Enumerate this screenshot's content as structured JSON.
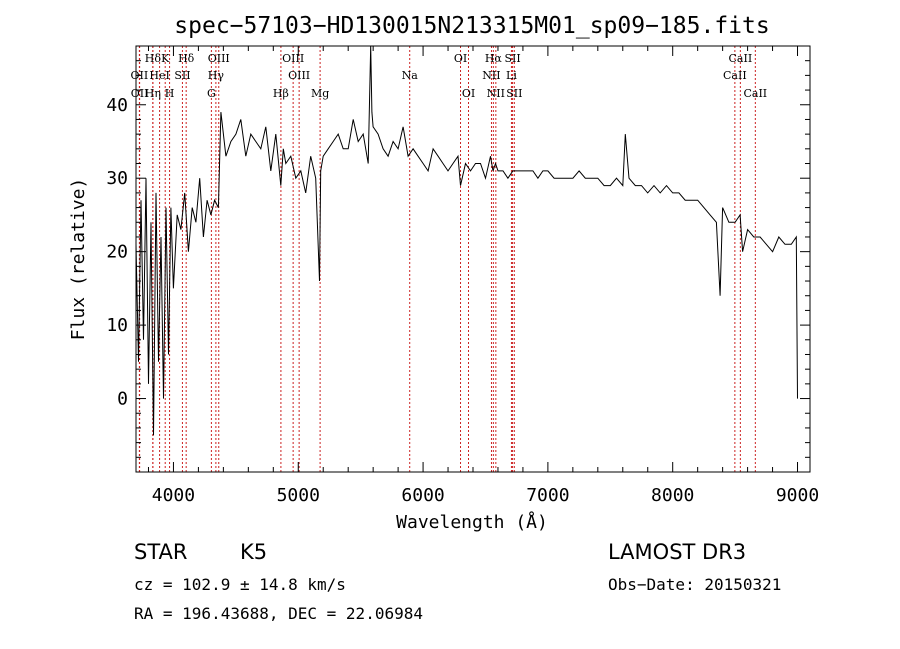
{
  "chart_data": {
    "type": "line",
    "title": "spec−57103−HD130015N213315M01_sp09−185.fits",
    "xlabel": "Wavelength (Å)",
    "ylabel": "Flux (relative)",
    "xlim": [
      3700,
      9100
    ],
    "ylim": [
      -10,
      48
    ],
    "xticks": [
      4000,
      5000,
      6000,
      7000,
      8000,
      9000
    ],
    "yticks": [
      0,
      10,
      20,
      30,
      40
    ],
    "series": [
      {
        "name": "spectrum",
        "x": [
          3700,
          3720,
          3740,
          3760,
          3780,
          3800,
          3820,
          3840,
          3860,
          3880,
          3900,
          3920,
          3940,
          3960,
          3980,
          4000,
          4030,
          4060,
          4090,
          4120,
          4150,
          4180,
          4210,
          4240,
          4270,
          4300,
          4330,
          4360,
          4380,
          4420,
          4460,
          4500,
          4540,
          4580,
          4620,
          4660,
          4700,
          4740,
          4780,
          4820,
          4860,
          4880,
          4900,
          4940,
          4980,
          5020,
          5060,
          5100,
          5140,
          5170,
          5180,
          5200,
          5240,
          5280,
          5320,
          5360,
          5400,
          5440,
          5480,
          5520,
          5560,
          5580,
          5590,
          5600,
          5640,
          5680,
          5720,
          5760,
          5800,
          5840,
          5880,
          5920,
          5960,
          6000,
          6040,
          6080,
          6120,
          6160,
          6200,
          6240,
          6280,
          6300,
          6340,
          6380,
          6420,
          6460,
          6500,
          6540,
          6560,
          6580,
          6600,
          6640,
          6680,
          6720,
          6760,
          6800,
          6840,
          6880,
          6920,
          6960,
          7000,
          7050,
          7100,
          7150,
          7200,
          7250,
          7300,
          7350,
          7400,
          7450,
          7500,
          7550,
          7600,
          7620,
          7650,
          7700,
          7750,
          7800,
          7850,
          7900,
          7950,
          8000,
          8050,
          8100,
          8150,
          8200,
          8250,
          8300,
          8350,
          8380,
          8400,
          8450,
          8500,
          8540,
          8560,
          8600,
          8650,
          8700,
          8750,
          8800,
          8850,
          8900,
          8950,
          8990,
          9000
        ],
        "y": [
          21,
          5,
          27,
          8,
          30,
          2,
          24,
          -5,
          28,
          5,
          22,
          0,
          26,
          6,
          26,
          15,
          25,
          23,
          28,
          20,
          26,
          24,
          30,
          22,
          27,
          25,
          27,
          26,
          39,
          33,
          35,
          36,
          38,
          33,
          36,
          35,
          34,
          37,
          31,
          36,
          29,
          34,
          32,
          33,
          30,
          31,
          28,
          33,
          30,
          16,
          31,
          33,
          34,
          35,
          36,
          34,
          34,
          38,
          35,
          36,
          32,
          50,
          39,
          37,
          36,
          34,
          33,
          35,
          34,
          37,
          33,
          34,
          33,
          32,
          31,
          34,
          33,
          32,
          31,
          32,
          33,
          29,
          32,
          31,
          32,
          32,
          30,
          33,
          31,
          32,
          31,
          31,
          30,
          31,
          31,
          31,
          31,
          31,
          30,
          31,
          31,
          30,
          30,
          30,
          30,
          31,
          30,
          30,
          30,
          29,
          29,
          30,
          29,
          36,
          30,
          29,
          29,
          28,
          29,
          28,
          29,
          28,
          28,
          27,
          27,
          27,
          26,
          25,
          24,
          14,
          26,
          24,
          24,
          25,
          20,
          23,
          22,
          22,
          21,
          20,
          22,
          21,
          21,
          22,
          0
        ]
      }
    ],
    "lines": [
      {
        "name": "Hδ",
        "wave": 3835,
        "row": 1
      },
      {
        "name": "K",
        "wave": 3934,
        "row": 1
      },
      {
        "name": "Hδ",
        "wave": 4102,
        "row": 1
      },
      {
        "name": "OIII",
        "wave": 4363,
        "row": 1
      },
      {
        "name": "OIII",
        "wave": 4959,
        "row": 1
      },
      {
        "name": "OI",
        "wave": 6300,
        "row": 1
      },
      {
        "name": "Hα",
        "wave": 6563,
        "row": 1
      },
      {
        "name": "SII",
        "wave": 6717,
        "row": 1
      },
      {
        "name": "CaII",
        "wave": 8542,
        "row": 1
      },
      {
        "name": "OII",
        "wave": 3727,
        "row": 2
      },
      {
        "name": "HeI",
        "wave": 3889,
        "row": 2
      },
      {
        "name": "SII",
        "wave": 4072,
        "row": 2
      },
      {
        "name": "Hγ",
        "wave": 4340,
        "row": 2
      },
      {
        "name": "OIII",
        "wave": 5007,
        "row": 2
      },
      {
        "name": "Na",
        "wave": 5893,
        "row": 2
      },
      {
        "name": "NII",
        "wave": 6548,
        "row": 2
      },
      {
        "name": "Li",
        "wave": 6708,
        "row": 2
      },
      {
        "name": "CaII",
        "wave": 8498,
        "row": 2
      },
      {
        "name": "OII",
        "wave": 3729,
        "row": 3
      },
      {
        "name": "Hη",
        "wave": 3835,
        "row": 3
      },
      {
        "name": "H",
        "wave": 3969,
        "row": 3
      },
      {
        "name": "G",
        "wave": 4304,
        "row": 3
      },
      {
        "name": "Hβ",
        "wave": 4861,
        "row": 3
      },
      {
        "name": "Mg",
        "wave": 5175,
        "row": 3
      },
      {
        "name": "OI",
        "wave": 6364,
        "row": 3
      },
      {
        "name": "NII",
        "wave": 6583,
        "row": 3
      },
      {
        "name": "SII",
        "wave": 6731,
        "row": 3
      },
      {
        "name": "CaII",
        "wave": 8662,
        "row": 3
      }
    ]
  },
  "info": {
    "object_class": "STAR",
    "subclass": "K5",
    "survey": "LAMOST DR3",
    "redshift": "cz = 102.9 ± 14.8 km/s",
    "obs_date": "Obs−Date: 20150321",
    "coords": "RA = 196.43688, DEC =  22.06984"
  }
}
